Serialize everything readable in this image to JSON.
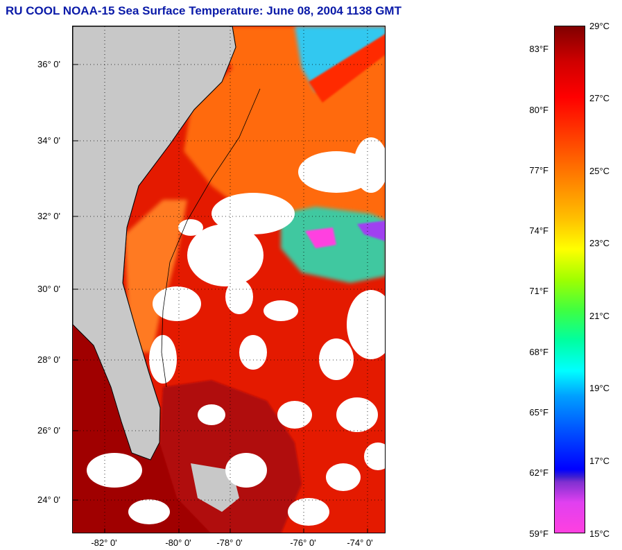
{
  "title": "RU COOL  NOAA-15  Sea Surface Temperature:  June 08, 2004 1138 GMT",
  "map": {
    "lat_labels": [
      "36° 0'",
      "34° 0'",
      "32° 0'",
      "30° 0'",
      "28° 0'",
      "26° 0'",
      "24° 0'"
    ],
    "lon_labels": [
      "-82° 0'",
      "-80° 0'",
      "-78° 0'",
      "-76° 0'",
      "-74° 0'"
    ],
    "colors": {
      "land": "#c8c8c8",
      "cloud": "#ffffff",
      "warm_gulf": "#a00000",
      "gulf_stream": "#e41a00",
      "shelf": "#ff6a10",
      "cool": "#30c8f0",
      "coldest": "#ff40e0"
    }
  },
  "colorbar": {
    "fahrenheit_labels": [
      "83°F",
      "80°F",
      "77°F",
      "74°F",
      "71°F",
      "68°F",
      "65°F",
      "62°F",
      "59°F"
    ],
    "celsius_labels": [
      "29°C",
      "27°C",
      "25°C",
      "23°C",
      "21°C",
      "19°C",
      "17°C",
      "15°C"
    ],
    "min_c": 15,
    "max_c": 29
  }
}
